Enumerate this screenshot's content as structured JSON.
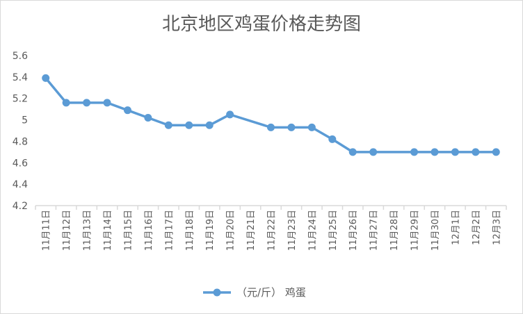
{
  "chart_data": {
    "type": "line",
    "title": "北京地区鸡蛋价格走势图",
    "categories": [
      "11月11日",
      "11月12日",
      "11月13日",
      "11月14日",
      "11月15日",
      "11月16日",
      "11月17日",
      "11月18日",
      "11月19日",
      "11月20日",
      "11月21日",
      "11月22日",
      "11月23日",
      "11月24日",
      "11月25日",
      "11月26日",
      "11月27日",
      "11月28日",
      "11月29日",
      "11月30日",
      "12月1日",
      "12月2日",
      "12月3日"
    ],
    "series": [
      {
        "name": "（元/斤） 鸡蛋",
        "color": "#5b9bd5",
        "values": [
          5.39,
          5.16,
          5.16,
          5.16,
          5.09,
          5.02,
          4.95,
          4.95,
          4.95,
          5.05,
          null,
          4.93,
          4.93,
          4.93,
          4.82,
          4.7,
          4.7,
          null,
          4.7,
          4.7,
          4.7,
          4.7,
          4.7
        ]
      }
    ],
    "ylim": [
      4.2,
      5.6
    ],
    "yticks": [
      "4.2",
      "4.4",
      "4.6",
      "4.8",
      "5",
      "5.2",
      "5.4",
      "5.6"
    ],
    "grid": false,
    "legend": "bottom"
  }
}
